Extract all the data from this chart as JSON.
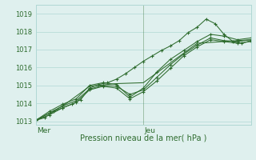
{
  "xlabel": "Pression niveau de la mer( hPa )",
  "ylim": [
    1012.8,
    1019.5
  ],
  "xlim": [
    0,
    48
  ],
  "yticks": [
    1013,
    1014,
    1015,
    1016,
    1017,
    1018,
    1019
  ],
  "day_labels": [
    {
      "label": "Mer",
      "x": 0
    },
    {
      "label": "Jeu",
      "x": 24
    }
  ],
  "bg_color": "#dff0ee",
  "grid_color": "#b0d8d4",
  "line_color": "#2d6b2d",
  "vline_x": 24,
  "series": [
    {
      "x": [
        0,
        2,
        4,
        6,
        8,
        10,
        12,
        14,
        16,
        18,
        20,
        22,
        24,
        26,
        28,
        30,
        32,
        34,
        36,
        38,
        40,
        42,
        44,
        46,
        48
      ],
      "y": [
        1013.05,
        1013.2,
        1013.55,
        1013.75,
        1013.95,
        1014.2,
        1014.85,
        1015.05,
        1015.15,
        1015.35,
        1015.65,
        1016.0,
        1016.35,
        1016.65,
        1016.95,
        1017.2,
        1017.5,
        1017.95,
        1018.25,
        1018.7,
        1018.45,
        1017.85,
        1017.45,
        1017.35,
        1017.5
      ],
      "marker": "+"
    },
    {
      "x": [
        0,
        3,
        6,
        9,
        12,
        15,
        18,
        21,
        24,
        27,
        30,
        33,
        36,
        39,
        42,
        45,
        48
      ],
      "y": [
        1013.05,
        1013.45,
        1013.85,
        1014.15,
        1014.8,
        1015.0,
        1014.95,
        1014.5,
        1014.75,
        1015.45,
        1016.15,
        1016.75,
        1017.25,
        1017.65,
        1017.5,
        1017.45,
        1017.55
      ],
      "marker": "+"
    },
    {
      "x": [
        0,
        3,
        6,
        9,
        12,
        15,
        18,
        21,
        24,
        27,
        30,
        33,
        36,
        39,
        42,
        45,
        48
      ],
      "y": [
        1013.05,
        1013.55,
        1013.95,
        1014.25,
        1015.0,
        1015.15,
        1015.05,
        1014.35,
        1014.85,
        1015.75,
        1016.45,
        1016.95,
        1017.45,
        1017.85,
        1017.75,
        1017.55,
        1017.65
      ],
      "marker": "+"
    },
    {
      "x": [
        0,
        3,
        6,
        9,
        12,
        15,
        18,
        21,
        24,
        27,
        30,
        33,
        36,
        39,
        42,
        45,
        48
      ],
      "y": [
        1013.05,
        1013.35,
        1013.75,
        1014.05,
        1014.75,
        1014.95,
        1014.85,
        1014.25,
        1014.65,
        1015.25,
        1015.95,
        1016.65,
        1017.15,
        1017.55,
        1017.45,
        1017.35,
        1017.45
      ],
      "marker": "+"
    },
    {
      "x": [
        0,
        6,
        12,
        18,
        24,
        30,
        36,
        42,
        48
      ],
      "y": [
        1013.05,
        1013.85,
        1014.95,
        1015.1,
        1015.15,
        1016.25,
        1017.35,
        1017.45,
        1017.55
      ],
      "marker": null
    }
  ],
  "ytick_fontsize": 6,
  "xlabel_fontsize": 7,
  "day_label_fontsize": 6.5
}
